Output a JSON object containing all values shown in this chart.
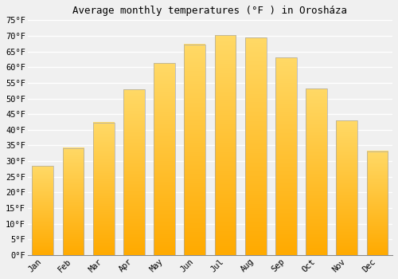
{
  "title": "Average monthly temperatures (°F ) in Orosháza",
  "months": [
    "Jan",
    "Feb",
    "Mar",
    "Apr",
    "May",
    "Jun",
    "Jul",
    "Aug",
    "Sep",
    "Oct",
    "Nov",
    "Dec"
  ],
  "values": [
    28.4,
    34.2,
    42.3,
    52.9,
    61.2,
    67.3,
    70.2,
    69.4,
    63.1,
    53.1,
    43.0,
    33.1
  ],
  "bar_color_main": "#FFAA00",
  "bar_color_light": "#FFD966",
  "bar_edge_color": "#AAAAAA",
  "ylim": [
    0,
    75
  ],
  "yticks": [
    0,
    5,
    10,
    15,
    20,
    25,
    30,
    35,
    40,
    45,
    50,
    55,
    60,
    65,
    70,
    75
  ],
  "background_color": "#F0F0F0",
  "plot_bg_color": "#F0F0F0",
  "grid_color": "#FFFFFF",
  "title_fontsize": 9,
  "tick_fontsize": 7.5,
  "font_family": "monospace",
  "bar_width": 0.7
}
